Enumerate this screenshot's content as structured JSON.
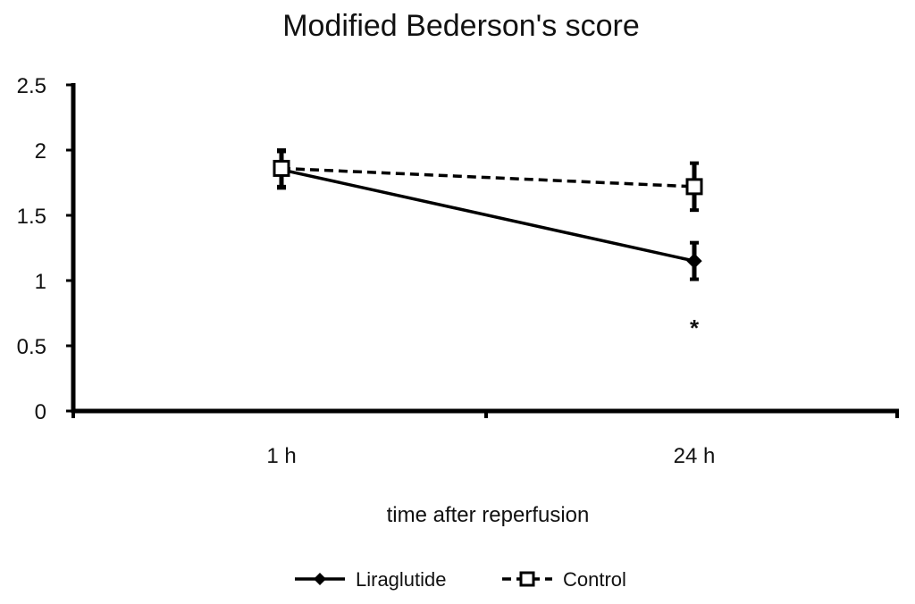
{
  "chart_data": {
    "type": "line",
    "title": "Modified Bederson's score",
    "xlabel": "time after reperfusion",
    "ylabel": "",
    "categories": [
      "1 h",
      "24 h"
    ],
    "ylim": [
      0,
      2.5
    ],
    "y_ticks": [
      "0",
      "0.5",
      "1",
      "1.5",
      "2",
      "2.5"
    ],
    "grid": false,
    "legend_position": "bottom",
    "series": [
      {
        "name": "Liraglutide",
        "values": [
          1.85,
          1.15
        ],
        "errors": [
          0.14,
          0.14
        ],
        "marker": "diamond-filled",
        "line": "solid",
        "color": "#000000"
      },
      {
        "name": "Control",
        "values": [
          1.86,
          1.72
        ],
        "errors": [
          0.14,
          0.18
        ],
        "marker": "square-open",
        "line": "dashed",
        "color": "#000000"
      }
    ],
    "annotations": [
      {
        "text": "*",
        "category": "24 h",
        "y": 0.7
      }
    ]
  }
}
